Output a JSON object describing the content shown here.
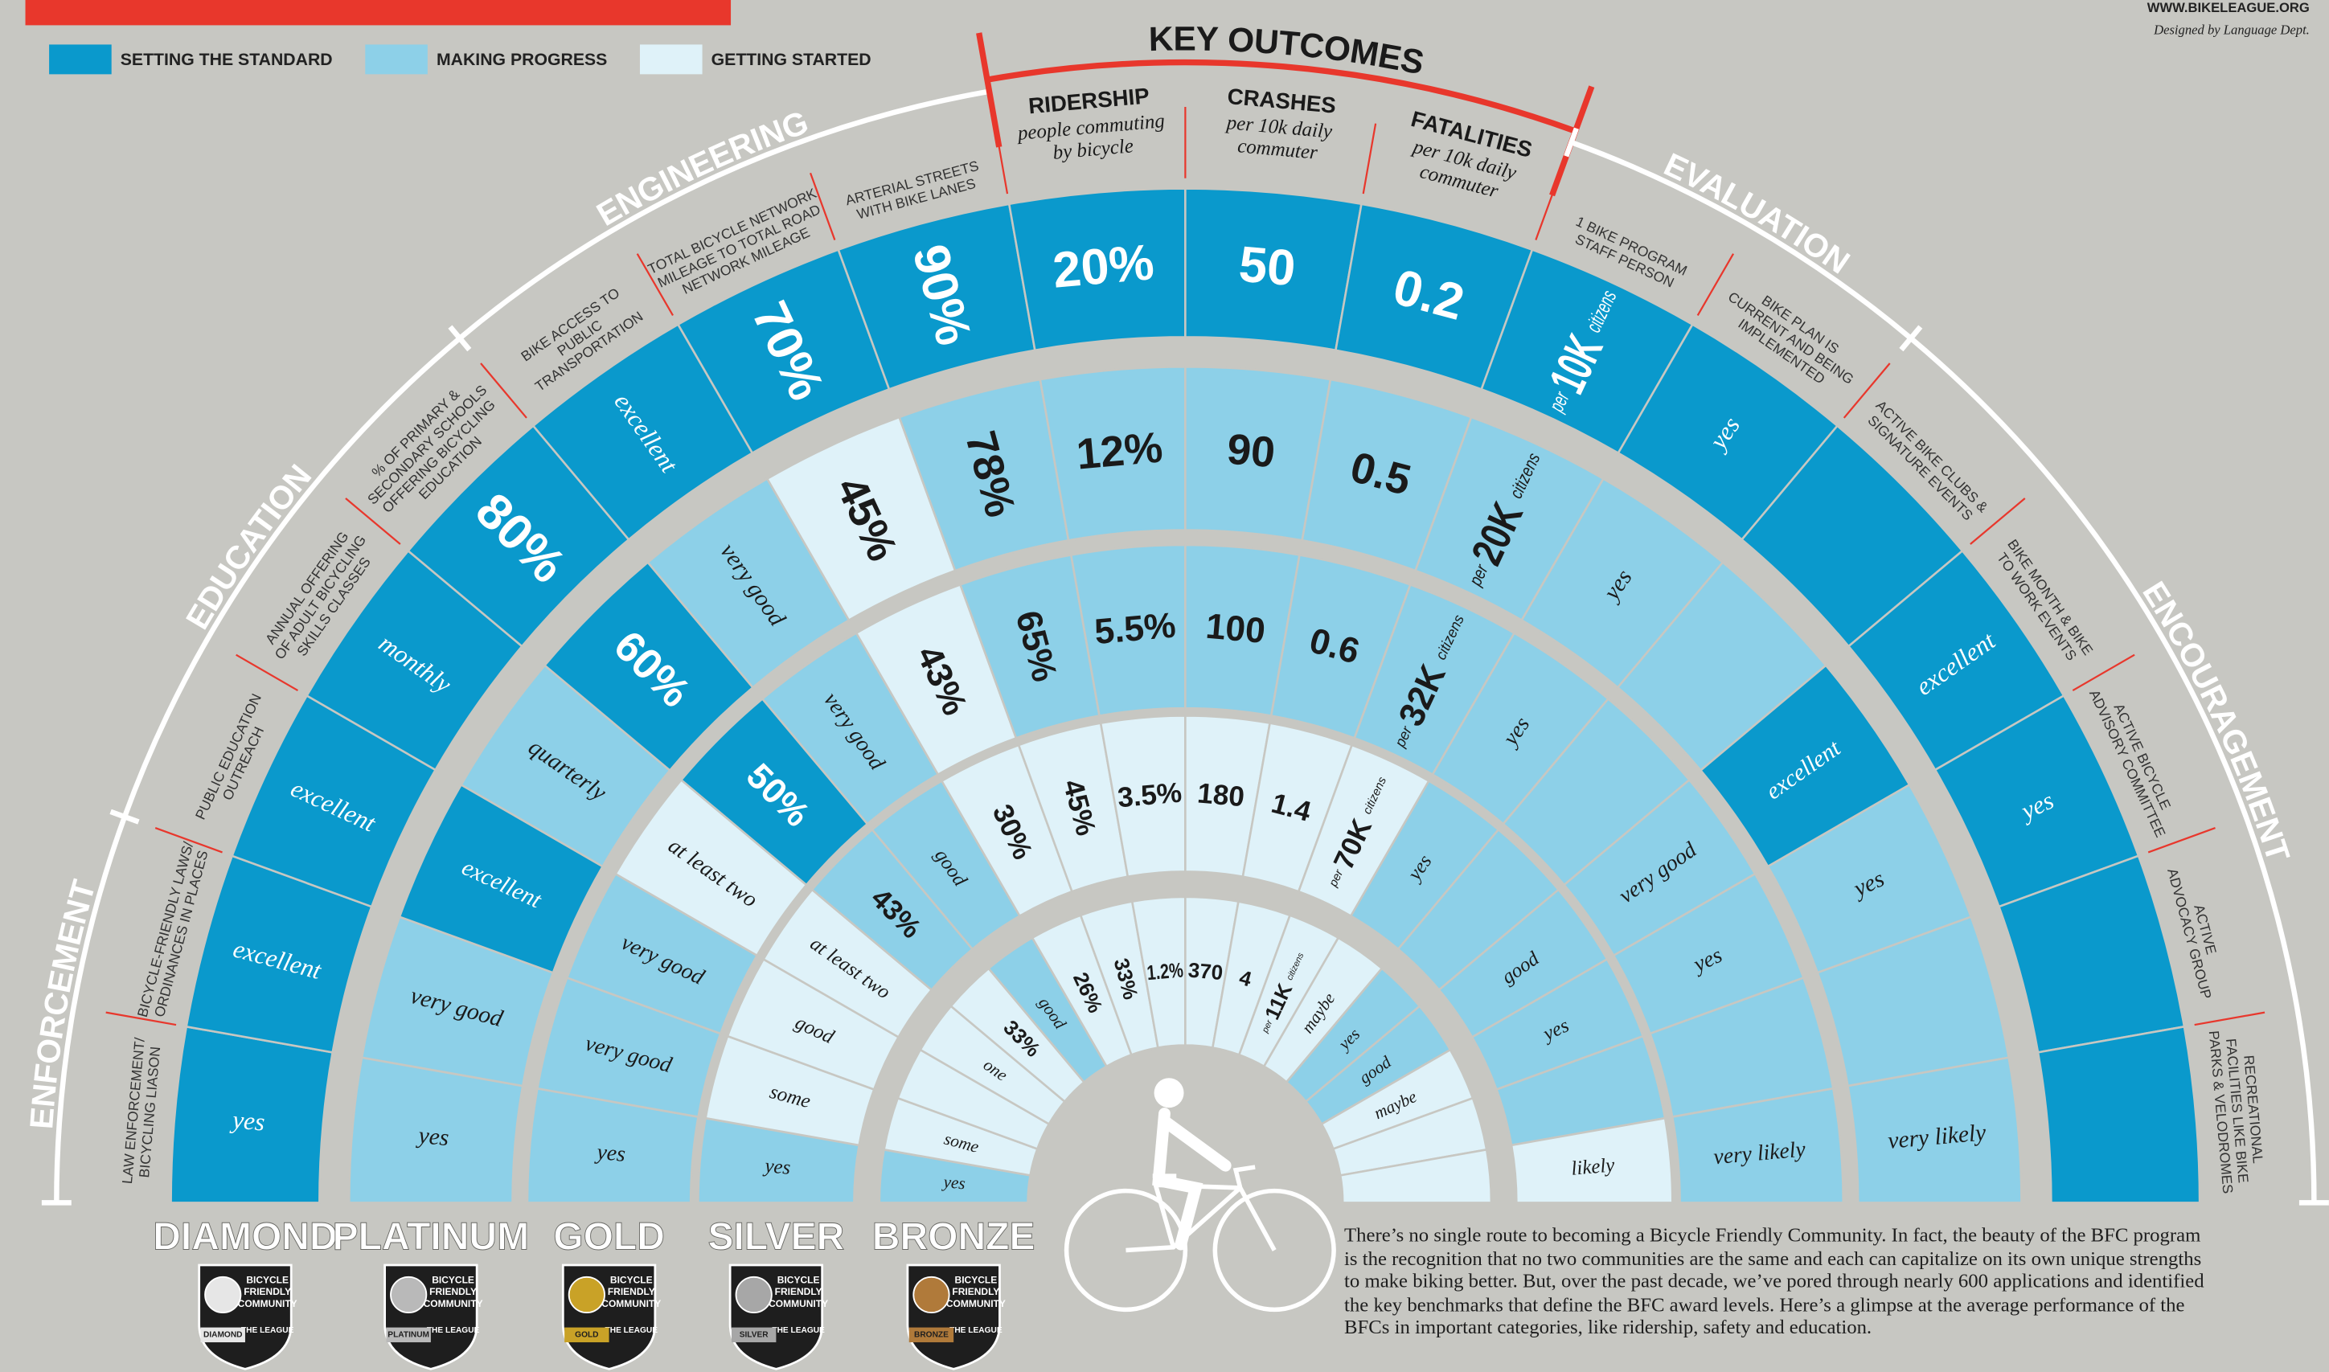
{
  "header": {
    "url": "WWW.BIKELEAGUE.ORG",
    "credit": "Designed by Language Dept."
  },
  "legend": [
    {
      "label": "SETTING THE STANDARD",
      "color": "#0a99cc"
    },
    {
      "label": "MAKING PROGRESS",
      "color": "#8dd0e8"
    },
    {
      "label": "GETTING STARTED",
      "color": "#dff2f9"
    }
  ],
  "sections": [
    {
      "title": "ENFORCEMENT",
      "categories": [
        {
          "lines": [
            "LAW ENFORCEMENT/",
            "BICYCLING LIASON"
          ]
        },
        {
          "lines": [
            "BICYCLE-FRIENDLY LAWS/",
            "ORDINANCES IN PLACES"
          ]
        }
      ]
    },
    {
      "title": "EDUCATION",
      "categories": [
        {
          "lines": [
            "PUBLIC EDUCATION",
            "OUTREACH"
          ]
        },
        {
          "lines": [
            "ANNUAL OFFERING",
            "OF ADULT BICYCLING",
            "SKILLS CLASSES"
          ]
        },
        {
          "lines": [
            "% OF PRIMARY &",
            "SECONDARY SCHOOLS",
            "OFFERING BICYCLING",
            "EDUCATION"
          ]
        }
      ]
    },
    {
      "title": "ENGINEERING",
      "categories": [
        {
          "lines": [
            "BIKE ACCESS TO",
            "PUBLIC",
            "TRANSPORTATION"
          ]
        },
        {
          "lines": [
            "TOTAL BICYCLE NETWORK",
            "MILEAGE TO TOTAL ROAD",
            "NETWORK MILEAGE"
          ]
        },
        {
          "lines": [
            "ARTERIAL STREETS",
            "WITH BIKE LANES"
          ]
        }
      ]
    },
    {
      "title": "KEY OUTCOMES",
      "categories": [
        {
          "name": "RIDERSHIP",
          "lines": [
            "people commuting",
            "by bicycle"
          ]
        },
        {
          "name": "CRASHES",
          "lines": [
            "per 10k daily",
            "commuter"
          ]
        },
        {
          "name": "FATALITIES",
          "lines": [
            "per 10k daily",
            "commuter"
          ]
        }
      ]
    },
    {
      "title": "EVALUATION",
      "categories": [
        {
          "lines": [
            "1 BIKE PROGRAM",
            "STAFF PERSON"
          ]
        },
        {
          "lines": [
            "BIKE PLAN IS",
            "CURRENT AND BEING",
            "IMPLEMENTED"
          ]
        }
      ]
    },
    {
      "title": "ENCOURAGEMENT",
      "categories": [
        {
          "lines": [
            "ACTIVE BIKE CLUBS &",
            "SIGNATURE EVENTS"
          ]
        },
        {
          "lines": [
            "BIKE MONTH & BIKE",
            "TO WORK EVENTS"
          ]
        },
        {
          "lines": [
            "ACTIVE BICYCLE",
            "ADVISORY COMMITTEE"
          ]
        },
        {
          "lines": [
            "ACTIVE",
            "ADVOCACY GROUP"
          ]
        },
        {
          "lines": [
            "RECREATIONAL",
            "FACILITIES LIKE BIKE",
            "PARKS & VELODROMES"
          ]
        }
      ]
    }
  ],
  "levels": [
    {
      "name": "DIAMOND",
      "badge_color": "#e6e6e6",
      "cells": [
        "yes",
        "excellent",
        "excellent",
        "monthly",
        "80%",
        "excellent",
        "70%",
        "90%",
        "20%",
        "50",
        "0.2",
        "per 10K citizens",
        "yes",
        null,
        "excellent",
        "yes",
        null,
        null
      ],
      "colors": [
        "#0a99cc",
        "#0a99cc",
        "#0a99cc",
        "#0a99cc",
        "#0a99cc",
        "#0a99cc",
        "#0a99cc",
        "#0a99cc",
        "#0a99cc",
        "#0a99cc",
        "#0a99cc",
        "#0a99cc",
        "#0a99cc",
        "#0a99cc",
        "#0a99cc",
        "#0a99cc",
        "#0a99cc",
        "#0a99cc"
      ]
    },
    {
      "name": "PLATINUM",
      "badge_color": "#b9b9b9",
      "cells": [
        "yes",
        "very good",
        "excellent",
        "quarterly",
        "60%",
        "very good",
        "45%",
        "78%",
        "12%",
        "90",
        "0.5",
        "per 20K citizens",
        "yes",
        null,
        "excellent",
        "yes",
        null,
        "very likely"
      ],
      "colors": [
        "#8dd0e8",
        "#8dd0e8",
        "#0a99cc",
        "#8dd0e8",
        "#0a99cc",
        "#8dd0e8",
        "#dff2f9",
        "#8dd0e8",
        "#8dd0e8",
        "#8dd0e8",
        "#8dd0e8",
        "#8dd0e8",
        "#8dd0e8",
        "#8dd0e8",
        "#0a99cc",
        "#8dd0e8",
        "#8dd0e8",
        "#8dd0e8"
      ]
    },
    {
      "name": "GOLD",
      "badge_color": "#c9a227",
      "cells": [
        "yes",
        "very good",
        "very good",
        "at least two",
        "50%",
        "very good",
        "43%",
        "65%",
        "5.5%",
        "100",
        "0.6",
        "per 32K citizens",
        "yes",
        null,
        "very good",
        "yes",
        null,
        "very likely"
      ],
      "colors": [
        "#8dd0e8",
        "#8dd0e8",
        "#8dd0e8",
        "#dff2f9",
        "#0a99cc",
        "#8dd0e8",
        "#dff2f9",
        "#8dd0e8",
        "#8dd0e8",
        "#8dd0e8",
        "#8dd0e8",
        "#8dd0e8",
        "#8dd0e8",
        "#8dd0e8",
        "#8dd0e8",
        "#8dd0e8",
        "#8dd0e8",
        "#8dd0e8"
      ]
    },
    {
      "name": "SILVER",
      "badge_color": "#a7a7a7",
      "cells": [
        "yes",
        "some",
        "good",
        "at least two",
        "43%",
        "good",
        "30%",
        "45%",
        "3.5%",
        "180",
        "1.4",
        "per 70K citizens",
        "yes",
        null,
        "good",
        "yes",
        null,
        "likely"
      ],
      "colors": [
        "#8dd0e8",
        "#dff2f9",
        "#dff2f9",
        "#dff2f9",
        "#8dd0e8",
        "#8dd0e8",
        "#dff2f9",
        "#dff2f9",
        "#dff2f9",
        "#dff2f9",
        "#dff2f9",
        "#dff2f9",
        "#8dd0e8",
        "#8dd0e8",
        "#8dd0e8",
        "#8dd0e8",
        "#8dd0e8",
        "#dff2f9"
      ]
    },
    {
      "name": "BRONZE",
      "badge_color": "#b07a3a",
      "cells": [
        "yes",
        "some",
        null,
        "one",
        "33%",
        "good",
        "26%",
        "33%",
        "1.2%",
        "370",
        "4",
        "per 11K citizens",
        "maybe",
        "yes",
        "good",
        "maybe",
        null,
        null
      ],
      "colors": [
        "#8dd0e8",
        "#dff2f9",
        "#dff2f9",
        "#dff2f9",
        "#dff2f9",
        "#8dd0e8",
        "#dff2f9",
        "#dff2f9",
        "#dff2f9",
        "#dff2f9",
        "#dff2f9",
        "#dff2f9",
        "#dff2f9",
        "#8dd0e8",
        "#8dd0e8",
        "#dff2f9",
        "#dff2f9",
        "#dff2f9"
      ]
    }
  ],
  "badge": {
    "lines": [
      "BICYCLE",
      "FRIENDLY",
      "COMMUNITY"
    ],
    "org": "THE LEAGUE"
  },
  "footer": {
    "text": "There’s no single route to becoming a Bicycle Friendly Community. In fact, the beauty of the BFC program is the recognition that no two communities are the same and each can capitalize on its own unique strengths to make biking better. But, over the past decade, we’ve pored through nearly 600 applications and identified the key benchmarks that define the BFC award levels. Here’s a glimpse at the average performance of the BFCs in important categories, like ridership, safety and education."
  }
}
